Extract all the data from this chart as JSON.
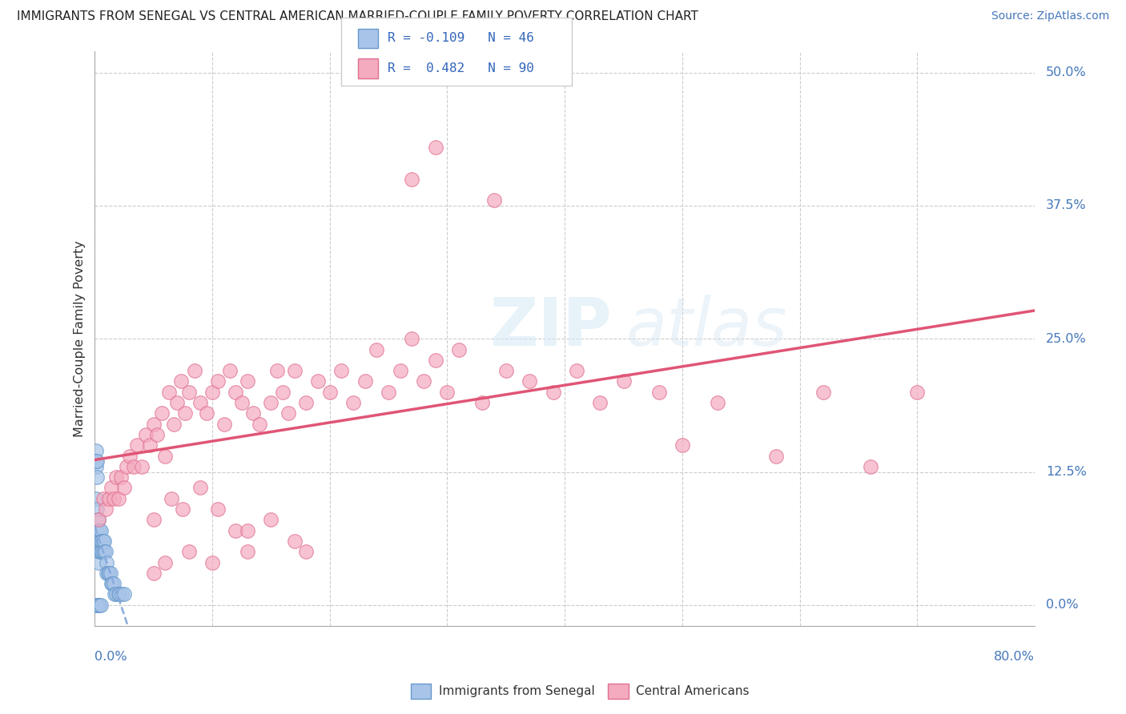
{
  "title": "IMMIGRANTS FROM SENEGAL VS CENTRAL AMERICAN MARRIED-COUPLE FAMILY POVERTY CORRELATION CHART",
  "source": "Source: ZipAtlas.com",
  "ylabel": "Married-Couple Family Poverty",
  "xlim": [
    0.0,
    0.8
  ],
  "ylim": [
    -0.02,
    0.52
  ],
  "ytick_positions": [
    0.0,
    0.125,
    0.25,
    0.375,
    0.5
  ],
  "yticklabels_right": [
    "0.0%",
    "12.5%",
    "25.0%",
    "37.5%",
    "50.0%"
  ],
  "grid_color": "#cccccc",
  "background_color": "#ffffff",
  "senegal_color": "#a8c4e8",
  "central_color": "#f4aabf",
  "senegal_edge": "#6699cc",
  "central_edge": "#e07090",
  "trendline_senegal_color": "#88aadd",
  "trendline_central_color": "#e05575",
  "legend_r_senegal": "-0.109",
  "legend_n_senegal": "46",
  "legend_r_central": "0.482",
  "legend_n_central": "90",
  "watermark_zip": "ZIP",
  "watermark_atlas": "atlas",
  "senegal_points_x": [
    0.001,
    0.001,
    0.002,
    0.002,
    0.002,
    0.003,
    0.003,
    0.003,
    0.003,
    0.004,
    0.004,
    0.004,
    0.005,
    0.005,
    0.005,
    0.006,
    0.006,
    0.007,
    0.007,
    0.008,
    0.008,
    0.009,
    0.01,
    0.01,
    0.011,
    0.012,
    0.013,
    0.014,
    0.015,
    0.016,
    0.017,
    0.018,
    0.02,
    0.021,
    0.023,
    0.025,
    0.001,
    0.001,
    0.002,
    0.002,
    0.003,
    0.003,
    0.001,
    0.002,
    0.004,
    0.005
  ],
  "senegal_points_y": [
    0.13,
    0.1,
    0.09,
    0.07,
    0.06,
    0.08,
    0.06,
    0.05,
    0.04,
    0.07,
    0.06,
    0.05,
    0.07,
    0.06,
    0.05,
    0.06,
    0.05,
    0.06,
    0.05,
    0.06,
    0.05,
    0.05,
    0.04,
    0.03,
    0.03,
    0.03,
    0.03,
    0.02,
    0.02,
    0.02,
    0.01,
    0.01,
    0.01,
    0.01,
    0.01,
    0.01,
    0.145,
    0.135,
    0.135,
    0.12,
    0.0,
    0.0,
    0.0,
    0.0,
    0.0,
    0.0
  ],
  "central_points_x": [
    0.003,
    0.007,
    0.009,
    0.012,
    0.014,
    0.016,
    0.018,
    0.02,
    0.022,
    0.025,
    0.027,
    0.03,
    0.033,
    0.036,
    0.04,
    0.043,
    0.047,
    0.05,
    0.053,
    0.057,
    0.06,
    0.063,
    0.067,
    0.07,
    0.073,
    0.077,
    0.08,
    0.085,
    0.09,
    0.095,
    0.1,
    0.105,
    0.11,
    0.115,
    0.12,
    0.125,
    0.13,
    0.135,
    0.14,
    0.15,
    0.155,
    0.16,
    0.165,
    0.17,
    0.18,
    0.19,
    0.2,
    0.21,
    0.22,
    0.23,
    0.24,
    0.25,
    0.26,
    0.27,
    0.28,
    0.29,
    0.3,
    0.31,
    0.33,
    0.35,
    0.37,
    0.39,
    0.41,
    0.43,
    0.45,
    0.48,
    0.5,
    0.53,
    0.58,
    0.62,
    0.66,
    0.7,
    0.27,
    0.29,
    0.34,
    0.17,
    0.18,
    0.13,
    0.05,
    0.06,
    0.08,
    0.1,
    0.12,
    0.15,
    0.05,
    0.065,
    0.075,
    0.09,
    0.105,
    0.13
  ],
  "central_points_y": [
    0.08,
    0.1,
    0.09,
    0.1,
    0.11,
    0.1,
    0.12,
    0.1,
    0.12,
    0.11,
    0.13,
    0.14,
    0.13,
    0.15,
    0.13,
    0.16,
    0.15,
    0.17,
    0.16,
    0.18,
    0.14,
    0.2,
    0.17,
    0.19,
    0.21,
    0.18,
    0.2,
    0.22,
    0.19,
    0.18,
    0.2,
    0.21,
    0.17,
    0.22,
    0.2,
    0.19,
    0.21,
    0.18,
    0.17,
    0.19,
    0.22,
    0.2,
    0.18,
    0.22,
    0.19,
    0.21,
    0.2,
    0.22,
    0.19,
    0.21,
    0.24,
    0.2,
    0.22,
    0.25,
    0.21,
    0.23,
    0.2,
    0.24,
    0.19,
    0.22,
    0.21,
    0.2,
    0.22,
    0.19,
    0.21,
    0.2,
    0.15,
    0.19,
    0.14,
    0.2,
    0.13,
    0.2,
    0.4,
    0.43,
    0.38,
    0.06,
    0.05,
    0.05,
    0.03,
    0.04,
    0.05,
    0.04,
    0.07,
    0.08,
    0.08,
    0.1,
    0.09,
    0.11,
    0.09,
    0.07
  ]
}
